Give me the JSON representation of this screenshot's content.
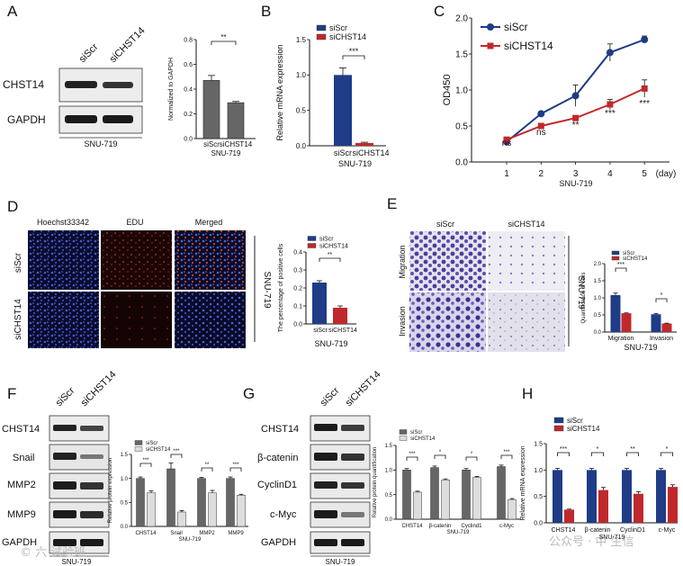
{
  "panels": {
    "A": {
      "letter": "A",
      "lanes": [
        "siScr",
        "siCHST14"
      ],
      "blot_labels": [
        "CHST14",
        "GAPDH"
      ],
      "cell_line": "SNU-719",
      "ylabel": "Normalized to GAPDH",
      "sig": "**"
    },
    "B": {
      "letter": "B",
      "legend": [
        "siScr",
        "siCHST14"
      ],
      "ylabel": "Relative mRNA expression",
      "sig": "***",
      "xlabel": "SNU-719"
    },
    "C": {
      "letter": "C",
      "legend": [
        "siScr",
        "siCHST14"
      ],
      "ylabel": "OD450",
      "xlabel": "SNU-719",
      "x_unit": "(day)",
      "sig": [
        "ns",
        "ns",
        "**",
        "***",
        "***"
      ]
    },
    "D": {
      "letter": "D",
      "columns": [
        "Hoechst33342",
        "EDU",
        "Merged"
      ],
      "rows": [
        "siScr",
        "siCHST14"
      ],
      "side_label": "SNU-719",
      "ylabel": "The percentage of positive cells",
      "legend": [
        "siScr",
        "siCHST14"
      ],
      "xlabel": "SNU-719",
      "sig": "**"
    },
    "E": {
      "letter": "E",
      "columns": [
        "siScr",
        "siCHST14"
      ],
      "rows": [
        "Migration",
        "Invasion"
      ],
      "side_label": "SNU-719",
      "ylabel": "Quantification of cells",
      "legend": [
        "siScr",
        "siCHST14"
      ],
      "xlabel": "SNU-719",
      "sig": [
        "***",
        "*"
      ]
    },
    "F": {
      "letter": "F",
      "lanes": [
        "siScr",
        "siCHST14"
      ],
      "blot_labels": [
        "CHST14",
        "Snail",
        "MMP2",
        "MMP9",
        "GAPDH"
      ],
      "cell_line": "SNU-719",
      "ylabel": "Relative protein expression",
      "legend": [
        "siScr",
        "siCHST14"
      ],
      "xlabel": "SNU-719",
      "sig": [
        "***",
        "***",
        "**",
        "***"
      ]
    },
    "G": {
      "letter": "G",
      "lanes": [
        "siScr",
        "siCHST14"
      ],
      "blot_labels": [
        "CHST14",
        "β-catenin",
        "CyclinD1",
        "c-Myc",
        "GAPDH"
      ],
      "cell_line": "SNU-719",
      "ylabel": "Relative protein quantification",
      "legend": [
        "siScr",
        "siCHST14"
      ],
      "xlabel": "SNU-719",
      "sig": [
        "***",
        "*",
        "*",
        "***"
      ]
    },
    "H": {
      "letter": "H",
      "legend": [
        "siScr",
        "siCHST14"
      ],
      "ylabel": "Relative mRNA expression",
      "xlabel": "SNU-719",
      "sig": [
        "***",
        "*",
        "**",
        "*"
      ]
    }
  },
  "watermark": {
    "left": "© 六 试验班",
    "right": "公众号 · 中 生信"
  },
  "colors": {
    "siScr_blue": "#1f3c88",
    "siCHST14_red": "#c0292b",
    "grey_dark": "#666666",
    "grey_light": "#dddddd"
  },
  "chart_data": [
    {
      "panel": "A",
      "type": "bar",
      "categories": [
        "siScr",
        "siCHST14"
      ],
      "values": [
        0.47,
        0.29
      ],
      "errors": [
        0.04,
        0.01
      ],
      "ylim": [
        0,
        0.8
      ],
      "yticks": [
        "0.0",
        "0.2",
        "0.4",
        "0.6",
        "0.8"
      ],
      "ylabel": "Normalized to GAPDH",
      "xlabel": "SNU-719",
      "colors": [
        "#666666",
        "#666666"
      ]
    },
    {
      "panel": "B",
      "type": "bar",
      "categories": [
        "siScr",
        "siCHST14"
      ],
      "values": [
        1.0,
        0.04
      ],
      "errors": [
        0.1,
        0.01
      ],
      "ylim": [
        0,
        1.5
      ],
      "yticks": [
        "0.0",
        "0.5",
        "1.0",
        "1.5"
      ],
      "ylabel": "Relative mRNA expression",
      "xlabel": "SNU-719",
      "colors": [
        "#1f3c88",
        "#c0292b"
      ]
    },
    {
      "panel": "C",
      "type": "line",
      "x": [
        1,
        2,
        3,
        4,
        5
      ],
      "xticks": [
        "1",
        "2",
        "3",
        "4",
        "5"
      ],
      "ylim": [
        0,
        2.0
      ],
      "yticks": [
        "0.0",
        "0.5",
        "1.0",
        "1.5",
        "2.0"
      ],
      "ylabel": "OD450",
      "xlabel": "SNU-719",
      "series": [
        {
          "name": "siScr",
          "values": [
            0.28,
            0.67,
            0.92,
            1.52,
            1.7
          ],
          "errors": [
            0.03,
            0.02,
            0.15,
            0.12,
            0.05
          ],
          "color": "#1f3c88"
        },
        {
          "name": "siCHST14",
          "values": [
            0.31,
            0.5,
            0.61,
            0.8,
            1.02
          ],
          "errors": [
            0.02,
            0.03,
            0.03,
            0.07,
            0.12
          ],
          "color": "#c0292b"
        }
      ]
    },
    {
      "panel": "D",
      "type": "bar",
      "categories": [
        "siScr",
        "siCHST14"
      ],
      "values": [
        0.23,
        0.09
      ],
      "errors": [
        0.01,
        0.01
      ],
      "ylim": [
        0,
        0.4
      ],
      "yticks": [
        "0.0",
        "0.1",
        "0.2",
        "0.3",
        "0.4"
      ],
      "ylabel": "The percentage of positive cells",
      "xlabel": "SNU-719",
      "colors": [
        "#1f3c88",
        "#c0292b"
      ]
    },
    {
      "panel": "E",
      "type": "bar",
      "categories": [
        "Migration",
        "Invasion"
      ],
      "ylim": [
        0,
        2.0
      ],
      "yticks": [
        "0.0",
        "0.5",
        "1.0",
        "1.5",
        "2.0"
      ],
      "ylabel": "Quantification of cells",
      "xlabel": "SNU-719",
      "series": [
        {
          "name": "siScr",
          "values": [
            1.08,
            0.52
          ],
          "errors": [
            0.06,
            0.02
          ],
          "color": "#1f3c88"
        },
        {
          "name": "siCHST14",
          "values": [
            0.55,
            0.25
          ],
          "errors": [
            0.01,
            0.01
          ],
          "color": "#c0292b"
        }
      ]
    },
    {
      "panel": "F",
      "type": "bar",
      "categories": [
        "CHST14",
        "Snail",
        "MMP2",
        "MMP9"
      ],
      "ylim": [
        0,
        1.5
      ],
      "yticks": [
        "0.0",
        "0.5",
        "1.0",
        "1.5"
      ],
      "ylabel": "Relative protein expression",
      "xlabel": "SNU-719",
      "series": [
        {
          "name": "siScr",
          "values": [
            1.0,
            1.2,
            1.0,
            1.0
          ],
          "errors": [
            0.03,
            0.12,
            0.02,
            0.03
          ],
          "color": "#666666"
        },
        {
          "name": "siCHST14",
          "values": [
            0.7,
            0.3,
            0.7,
            0.65
          ],
          "errors": [
            0.04,
            0.03,
            0.05,
            0.02
          ],
          "color": "#dddddd"
        }
      ]
    },
    {
      "panel": "G",
      "type": "bar",
      "categories": [
        "CHST14",
        "β-catenin",
        "Cyclind1",
        "c-Myc"
      ],
      "ylim": [
        0,
        1.5
      ],
      "yticks": [
        "0.0",
        "0.5",
        "1.0",
        "1.5"
      ],
      "ylabel": "Relative protein quantification",
      "xlabel": "SNU-719",
      "series": [
        {
          "name": "siScr",
          "values": [
            1.0,
            1.05,
            1.0,
            1.07
          ],
          "errors": [
            0.03,
            0.03,
            0.03,
            0.03
          ],
          "color": "#666666"
        },
        {
          "name": "siCHST14",
          "values": [
            0.55,
            0.8,
            0.85,
            0.4
          ],
          "errors": [
            0.02,
            0.02,
            0.02,
            0.02
          ],
          "color": "#dddddd"
        }
      ]
    },
    {
      "panel": "H",
      "type": "bar",
      "categories": [
        "CHST14",
        "β-catenin",
        "CyclinD1",
        "c-Myc"
      ],
      "ylim": [
        0,
        1.5
      ],
      "yticks": [
        "0.0",
        "0.5",
        "1.0",
        "1.5"
      ],
      "ylabel": "Relative mRNA expression",
      "xlabel": "SNU-719",
      "series": [
        {
          "name": "siScr",
          "values": [
            1.0,
            1.0,
            1.0,
            1.0
          ],
          "errors": [
            0.03,
            0.03,
            0.03,
            0.03
          ],
          "color": "#1f3c88"
        },
        {
          "name": "siCHST14",
          "values": [
            0.25,
            0.62,
            0.55,
            0.68
          ],
          "errors": [
            0.01,
            0.05,
            0.04,
            0.04
          ],
          "color": "#c0292b"
        }
      ]
    }
  ]
}
